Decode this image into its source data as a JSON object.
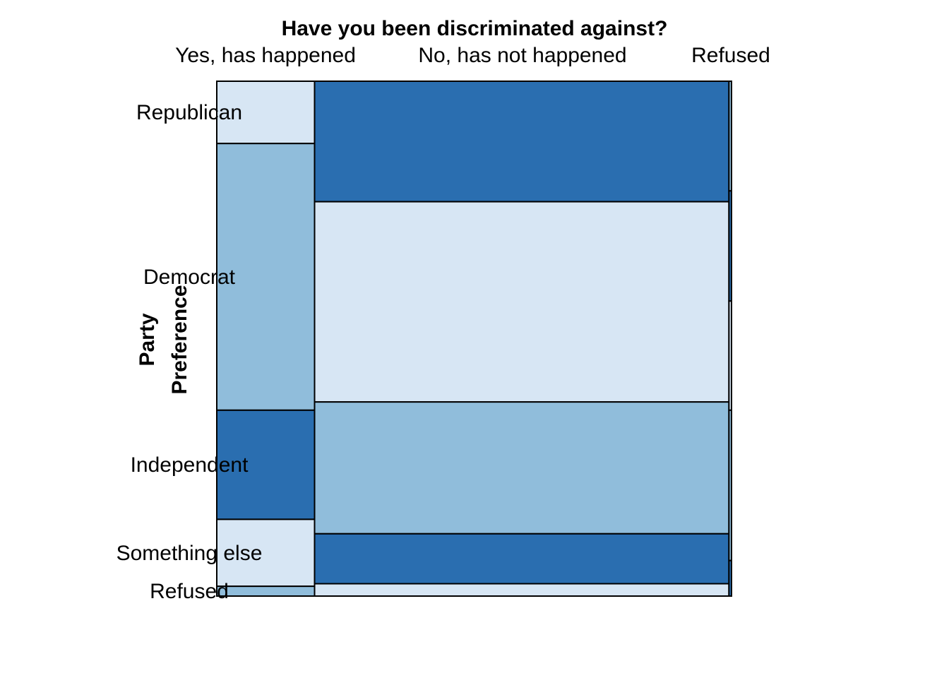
{
  "chart_data": {
    "type": "mosaic",
    "title": "Have you been discriminated against?",
    "ylabel_line1": "Party",
    "ylabel_line2": "Preference",
    "columns": [
      "Yes, has happened",
      "No, has not happened",
      "Refused"
    ],
    "rows": [
      "Republican",
      "Democrat",
      "Independent",
      "Something else",
      "Refused"
    ],
    "column_shares": [
      0.19,
      0.805,
      0.005
    ],
    "row_shares_by_column": [
      [
        0.121,
        0.518,
        0.212,
        0.13,
        0.019
      ],
      [
        0.234,
        0.389,
        0.256,
        0.097,
        0.024
      ],
      [
        0.213,
        0.214,
        0.212,
        0.292,
        0.069
      ]
    ],
    "palette": [
      "#d7e6f4",
      "#90bddb",
      "#2a6eb0"
    ],
    "stroke": "#000000"
  }
}
